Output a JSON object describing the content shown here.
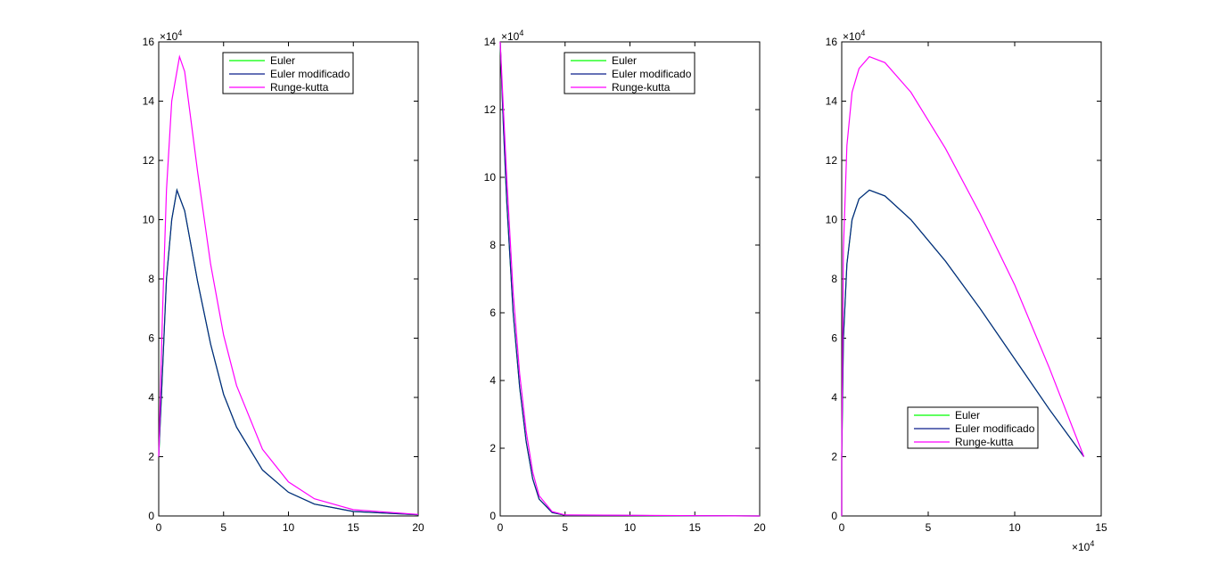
{
  "chart_data": [
    {
      "type": "line",
      "xlim": [
        0,
        20
      ],
      "ylim": [
        0,
        160000
      ],
      "xticks": [
        "0",
        "5",
        "10",
        "15",
        "20"
      ],
      "yticks": [
        "0",
        "2",
        "4",
        "6",
        "8",
        "10",
        "12",
        "14",
        "16"
      ],
      "y_multiplier": "×10",
      "y_exponent": "4",
      "legend_position": "top",
      "series": [
        {
          "name": "Euler",
          "color": "#00ff00",
          "x": [
            0,
            0.3,
            0.6,
            1,
            1.4,
            2,
            3,
            4,
            5,
            6,
            8,
            10,
            12,
            15,
            20
          ],
          "y": [
            20000,
            50000,
            80000,
            100000,
            110000,
            103000,
            79000,
            58000,
            41000,
            30000,
            15500,
            8000,
            4000,
            1500,
            400
          ]
        },
        {
          "name": "Euler modificado",
          "color": "#0a1e8c",
          "x": [
            0,
            0.3,
            0.6,
            1,
            1.4,
            2,
            3,
            4,
            5,
            6,
            8,
            10,
            12,
            15,
            20
          ],
          "y": [
            20000,
            50000,
            80000,
            100000,
            110000,
            103000,
            79000,
            58000,
            41000,
            30000,
            15500,
            8000,
            4000,
            1500,
            400
          ]
        },
        {
          "name": "Runge-kutta",
          "color": "#ff00ff",
          "x": [
            0,
            0.3,
            0.6,
            1,
            1.6,
            2,
            3,
            4,
            5,
            6,
            8,
            10,
            12,
            15,
            20
          ],
          "y": [
            20000,
            70000,
            110000,
            140000,
            155000,
            150000,
            116000,
            85000,
            61000,
            44000,
            22500,
            11500,
            5800,
            2100,
            500
          ]
        }
      ]
    },
    {
      "type": "line",
      "xlim": [
        0,
        20
      ],
      "ylim": [
        0,
        140000
      ],
      "xticks": [
        "0",
        "5",
        "10",
        "15",
        "20"
      ],
      "yticks": [
        "0",
        "2",
        "4",
        "6",
        "8",
        "10",
        "12",
        "14"
      ],
      "y_multiplier": "×10",
      "y_exponent": "4",
      "legend_position": "top",
      "series": [
        {
          "name": "Euler",
          "color": "#00ff00",
          "x": [
            0,
            0.25,
            0.5,
            1,
            1.5,
            2,
            2.5,
            3,
            4,
            5,
            20
          ],
          "y": [
            140000,
            115000,
            93000,
            60000,
            38000,
            22000,
            11000,
            5000,
            1000,
            200,
            0
          ]
        },
        {
          "name": "Euler modificado",
          "color": "#0a1e8c",
          "x": [
            0,
            0.25,
            0.5,
            1,
            1.5,
            2,
            2.5,
            3,
            4,
            5,
            20
          ],
          "y": [
            140000,
            115000,
            93000,
            60000,
            38000,
            22000,
            11000,
            5000,
            1000,
            200,
            0
          ]
        },
        {
          "name": "Runge-kutta",
          "color": "#ff00ff",
          "x": [
            0,
            0.25,
            0.5,
            1,
            1.5,
            2,
            2.5,
            3,
            4,
            5,
            20
          ],
          "y": [
            140000,
            120000,
            100000,
            66000,
            42000,
            25000,
            13000,
            6000,
            1300,
            300,
            0
          ]
        }
      ]
    },
    {
      "type": "line",
      "xlim": [
        0,
        150000
      ],
      "ylim": [
        0,
        160000
      ],
      "xticks": [
        "0",
        "5",
        "10",
        "15"
      ],
      "yticks": [
        "0",
        "2",
        "4",
        "6",
        "8",
        "10",
        "12",
        "14",
        "16"
      ],
      "x_multiplier": "×10",
      "x_exponent": "4",
      "y_multiplier": "×10",
      "y_exponent": "4",
      "legend_position": "lower-center",
      "series": [
        {
          "name": "Euler",
          "color": "#00ff00",
          "x": [
            0,
            0,
            1000,
            3000,
            6000,
            10000,
            16000,
            25000,
            40000,
            60000,
            80000,
            100000,
            120000,
            140000
          ],
          "y": [
            0,
            20000,
            60000,
            85000,
            100000,
            107000,
            110000,
            108000,
            100000,
            86000,
            70000,
            53000,
            36000,
            20000
          ]
        },
        {
          "name": "Euler modificado",
          "color": "#0a1e8c",
          "x": [
            0,
            0,
            1000,
            3000,
            6000,
            10000,
            16000,
            25000,
            40000,
            60000,
            80000,
            100000,
            120000,
            140000
          ],
          "y": [
            0,
            20000,
            60000,
            85000,
            100000,
            107000,
            110000,
            108000,
            100000,
            86000,
            70000,
            53000,
            36000,
            20000
          ]
        },
        {
          "name": "Runge-kutta",
          "color": "#ff00ff",
          "x": [
            0,
            0,
            1000,
            3000,
            6000,
            10000,
            16000,
            25000,
            40000,
            60000,
            80000,
            100000,
            120000,
            140000
          ],
          "y": [
            0,
            20000,
            90000,
            125000,
            143000,
            151000,
            155000,
            153000,
            143000,
            124000,
            102000,
            78000,
            50000,
            20000
          ]
        }
      ]
    }
  ]
}
